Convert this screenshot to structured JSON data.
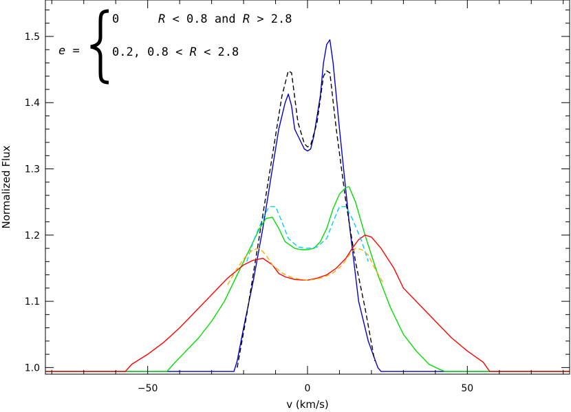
{
  "chart_data": {
    "type": "line",
    "title": "",
    "xlabel": "v (km/s)",
    "ylabel": "Normalized Flux",
    "xlim": [
      -82,
      82
    ],
    "ylim": [
      0.99,
      1.555
    ],
    "xticks": [
      -50,
      0,
      50
    ],
    "xtick_labels": [
      "−50",
      "0",
      "50"
    ],
    "yticks": [
      1.0,
      1.1,
      1.2,
      1.3,
      1.4,
      1.5
    ],
    "ytick_labels": [
      "1.0",
      "1.1",
      "1.2",
      "1.3",
      "1.4",
      "1.5"
    ],
    "grid": false,
    "annotation": {
      "lhs": "e =",
      "case1_value": "0",
      "case1_cond_pre": "R",
      "case1_cond_mid": " < 0.8 and ",
      "case1_cond_r2": "R",
      "case1_cond_post": " > 2.8",
      "case2_value": "0.2, 0.8 < ",
      "case2_r": "R",
      "case2_post": " < 2.8"
    },
    "series": [
      {
        "color": "#0000cc",
        "style": "solid",
        "x": [
          -82,
          -23,
          -22,
          -20,
          -17,
          -14,
          -11,
          -9,
          -7,
          -6,
          -5,
          -4,
          -2,
          -1,
          0,
          1,
          2,
          4,
          5,
          6,
          7,
          8,
          10,
          13,
          16,
          19,
          22,
          23,
          82
        ],
        "y": [
          0.994,
          0.994,
          1.01,
          1.06,
          1.13,
          1.21,
          1.3,
          1.36,
          1.4,
          1.413,
          1.395,
          1.36,
          1.34,
          1.33,
          1.327,
          1.33,
          1.35,
          1.41,
          1.46,
          1.488,
          1.495,
          1.46,
          1.36,
          1.22,
          1.1,
          1.04,
          1.0,
          0.994,
          0.994
        ]
      },
      {
        "color": "#000000",
        "style": "dashed",
        "x": [
          -22,
          -19,
          -15,
          -11,
          -8,
          -6,
          -5,
          -3,
          -1,
          0,
          1,
          3,
          5,
          6,
          7,
          9,
          12,
          15,
          18,
          21
        ],
        "y": [
          1.0,
          1.08,
          1.2,
          1.32,
          1.41,
          1.448,
          1.445,
          1.37,
          1.338,
          1.333,
          1.336,
          1.37,
          1.44,
          1.448,
          1.445,
          1.36,
          1.25,
          1.16,
          1.09,
          1.01
        ]
      },
      {
        "color": "#00dd00",
        "style": "solid",
        "x": [
          -82,
          -44,
          -42,
          -38,
          -34,
          -30,
          -26,
          -22,
          -18,
          -15,
          -13,
          -11,
          -9,
          -7,
          -4,
          -2,
          0,
          2,
          4,
          6,
          8,
          10,
          12,
          13,
          15,
          18,
          22,
          26,
          30,
          34,
          38,
          41,
          43,
          82
        ],
        "y": [
          0.994,
          0.994,
          1.005,
          1.025,
          1.045,
          1.07,
          1.1,
          1.14,
          1.18,
          1.21,
          1.225,
          1.227,
          1.21,
          1.19,
          1.18,
          1.178,
          1.178,
          1.18,
          1.19,
          1.21,
          1.24,
          1.262,
          1.272,
          1.273,
          1.25,
          1.2,
          1.14,
          1.09,
          1.05,
          1.025,
          1.005,
          0.998,
          0.994,
          0.994
        ]
      },
      {
        "color": "#ff0000",
        "style": "solid",
        "x": [
          -82,
          -57,
          -55,
          -50,
          -45,
          -40,
          -35,
          -30,
          -25,
          -20,
          -17,
          -14,
          -11,
          -9,
          -7,
          -4,
          -1,
          0,
          3,
          6,
          9,
          12,
          14,
          16,
          18,
          20,
          23,
          27,
          30,
          35,
          40,
          45,
          50,
          55,
          57,
          82
        ],
        "y": [
          0.994,
          0.994,
          1.005,
          1.02,
          1.038,
          1.06,
          1.085,
          1.11,
          1.135,
          1.155,
          1.162,
          1.165,
          1.155,
          1.142,
          1.137,
          1.133,
          1.132,
          1.132,
          1.135,
          1.14,
          1.15,
          1.165,
          1.18,
          1.193,
          1.2,
          1.197,
          1.18,
          1.15,
          1.12,
          1.095,
          1.07,
          1.045,
          1.025,
          1.008,
          0.994,
          0.994
        ]
      },
      {
        "color": "#00ccff",
        "style": "dashed",
        "x": [
          -19,
          -17,
          -14,
          -12,
          -10,
          -8,
          -6,
          -3,
          0,
          3,
          6,
          8,
          10,
          12,
          14,
          17,
          19
        ],
        "y": [
          1.16,
          1.19,
          1.225,
          1.243,
          1.243,
          1.22,
          1.195,
          1.182,
          1.18,
          1.182,
          1.195,
          1.22,
          1.243,
          1.243,
          1.225,
          1.19,
          1.16
        ]
      },
      {
        "color": "#ffaa00",
        "style": "dashed",
        "x": [
          -25,
          -22,
          -19,
          -17,
          -15,
          -13,
          -11,
          -8,
          -5,
          -2,
          0,
          2,
          5,
          8,
          11,
          13,
          15,
          17,
          19,
          21,
          24
        ],
        "y": [
          1.125,
          1.15,
          1.17,
          1.178,
          1.18,
          1.17,
          1.155,
          1.143,
          1.136,
          1.133,
          1.132,
          1.133,
          1.136,
          1.143,
          1.155,
          1.17,
          1.18,
          1.178,
          1.17,
          1.15,
          1.125
        ]
      }
    ]
  }
}
